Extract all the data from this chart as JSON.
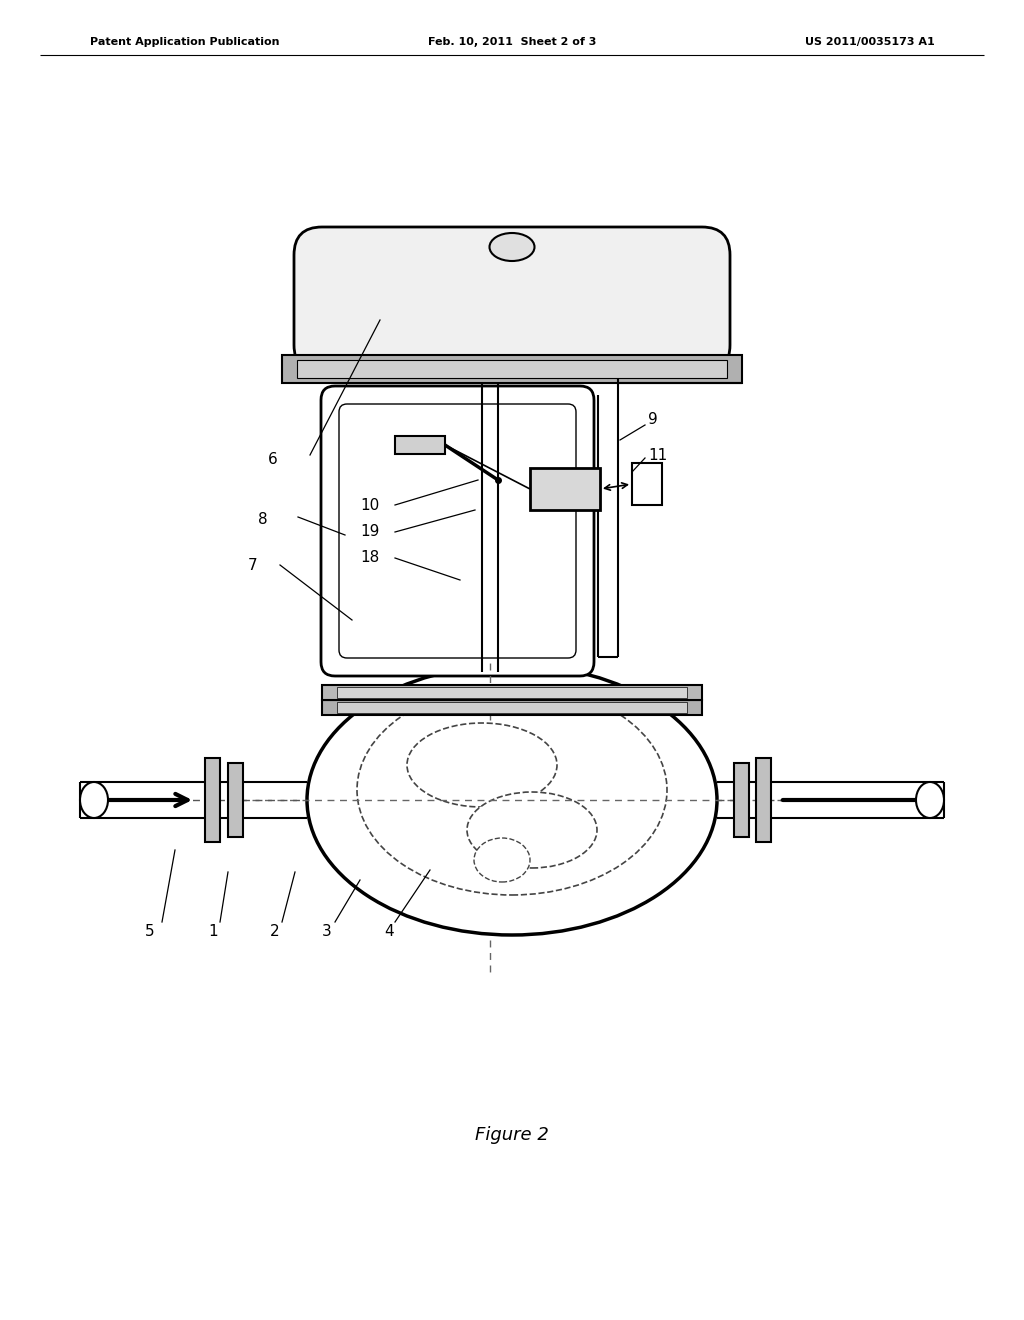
{
  "header_left": "Patent Application Publication",
  "header_center": "Feb. 10, 2011  Sheet 2 of 3",
  "header_right": "US 2011/0035173 A1",
  "footer_label": "Figure 2",
  "bg_color": "#ffffff",
  "line_color": "#000000"
}
